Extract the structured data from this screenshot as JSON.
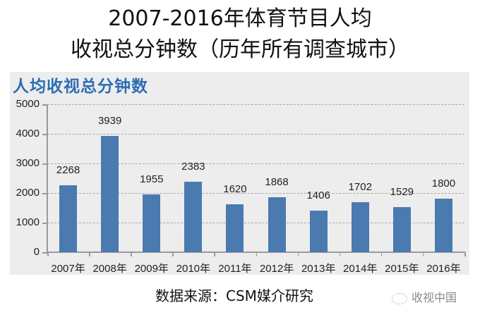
{
  "title": {
    "line1": "2007-2016年体育节目人均",
    "line2": "收视总分钟数（历年所有调查城市）"
  },
  "chart_title": "人均收视总分钟数",
  "source": "数据来源：CSM媒介研究",
  "watermark": "收视中国",
  "colors": {
    "bar": "#4a7ab0",
    "chart_title": "#2e6db2",
    "panel_bg": "#ededed"
  },
  "chart_data": {
    "type": "bar",
    "title": "人均收视总分钟数",
    "categories": [
      "2007年",
      "2008年",
      "2009年",
      "2010年",
      "2011年",
      "2012年",
      "2013年",
      "2014年",
      "2015年",
      "2016年"
    ],
    "values": [
      2268,
      3939,
      1955,
      2383,
      1620,
      1868,
      1406,
      1702,
      1529,
      1800
    ],
    "value_labels": [
      "2268",
      "3939",
      "1955",
      "2383",
      "1620",
      "1868",
      "1406",
      "1702",
      "1529",
      "1800"
    ],
    "xlabel": "",
    "ylabel": "",
    "ylim": [
      0,
      5000
    ],
    "yticks": [
      "0",
      "1000",
      "2000",
      "3000",
      "4000",
      "5000"
    ],
    "grid": "horizontal dashed",
    "legend": "none"
  }
}
